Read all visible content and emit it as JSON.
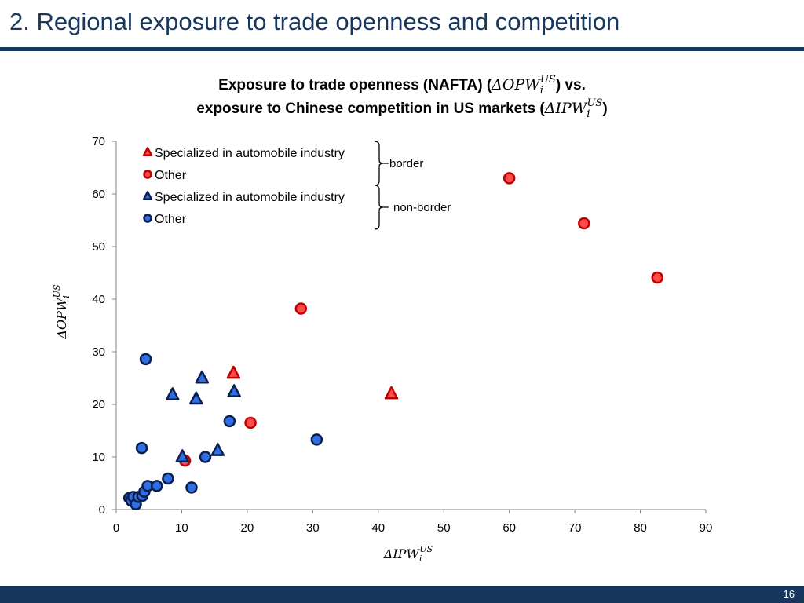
{
  "slide": {
    "title": "2. Regional exposure to trade openness and competition",
    "page_number": "16",
    "colors": {
      "navy": "#17375e"
    }
  },
  "chart_data": {
    "type": "scatter",
    "title_line1_text": "Exposure to trade openness (NAFTA) (",
    "title_line1_math": "ΔOPW",
    "title_line1_sub": "i",
    "title_line1_sup": "US",
    "title_line1_end": ") vs.",
    "title_line2_text": "exposure to Chinese competition in US markets (",
    "title_line2_math": "ΔIPW",
    "title_line2_sub": "i",
    "title_line2_sup": "US",
    "title_line2_end": ")",
    "xlabel_math": "ΔIPW",
    "xlabel_sub": "i",
    "xlabel_sup": "US",
    "ylabel_math": "ΔOPW",
    "ylabel_sub": "i",
    "ylabel_sup": "US",
    "xlim": [
      0,
      90
    ],
    "ylim": [
      0,
      70
    ],
    "x_ticks": [
      0,
      10,
      20,
      30,
      40,
      50,
      60,
      70,
      80,
      90
    ],
    "y_ticks": [
      0,
      10,
      20,
      30,
      40,
      50,
      60,
      70
    ],
    "grid": false,
    "legend_position": "top-left",
    "legend_groups": [
      {
        "label": "border",
        "series": [
          0,
          1
        ]
      },
      {
        "label": "non-border",
        "series": [
          2,
          3
        ]
      }
    ],
    "series": [
      {
        "name": "Specialized in automobile industry",
        "group": "border",
        "marker": "triangle",
        "color": "#ff4b4b",
        "edge": "#c00000",
        "points": [
          [
            17.9,
            25.9
          ],
          [
            42.0,
            22.0
          ]
        ]
      },
      {
        "name": "Other",
        "group": "border",
        "marker": "circle",
        "color": "#ff4b4b",
        "edge": "#c00000",
        "points": [
          [
            10.5,
            9.3
          ],
          [
            20.5,
            16.5
          ],
          [
            28.2,
            38.2
          ],
          [
            60.0,
            63.0
          ],
          [
            71.4,
            54.4
          ],
          [
            82.6,
            44.1
          ]
        ]
      },
      {
        "name": "Specialized in automobile industry",
        "group": "non-border",
        "marker": "triangle",
        "color": "#2e6fe6",
        "edge": "#0b1f4d",
        "points": [
          [
            8.6,
            21.8
          ],
          [
            10.1,
            10.0
          ],
          [
            12.2,
            21.0
          ],
          [
            13.1,
            25.0
          ],
          [
            15.5,
            11.2
          ],
          [
            18.0,
            22.4
          ]
        ]
      },
      {
        "name": "Other",
        "group": "non-border",
        "marker": "circle",
        "color": "#2e6fe6",
        "edge": "#0b1f4d",
        "points": [
          [
            4.5,
            28.6
          ],
          [
            3.9,
            11.7
          ],
          [
            2.0,
            2.2
          ],
          [
            2.3,
            1.7
          ],
          [
            2.6,
            2.4
          ],
          [
            3.0,
            1.0
          ],
          [
            3.4,
            2.4
          ],
          [
            4.0,
            2.6
          ],
          [
            4.3,
            3.4
          ],
          [
            4.8,
            4.5
          ],
          [
            6.2,
            4.5
          ],
          [
            7.9,
            5.9
          ],
          [
            11.5,
            4.2
          ],
          [
            13.6,
            10.0
          ],
          [
            17.3,
            16.8
          ],
          [
            30.6,
            13.3
          ]
        ]
      }
    ]
  }
}
